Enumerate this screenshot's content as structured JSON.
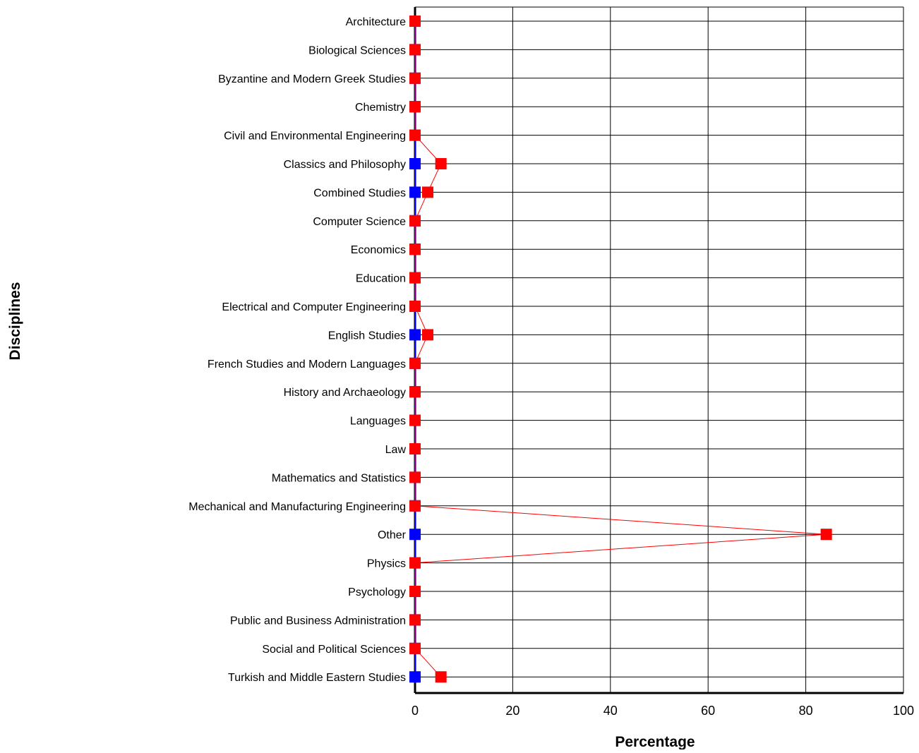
{
  "chart_data": {
    "type": "line",
    "orientation": "horizontal",
    "xlabel": "Percentage",
    "ylabel": "Disciplines",
    "xlim": [
      0,
      100
    ],
    "xticks": [
      "0",
      "20",
      "40",
      "60",
      "80",
      "100"
    ],
    "grid": true,
    "categories": [
      "Architecture",
      "Biological Sciences",
      "Byzantine and Modern Greek Studies",
      "Chemistry",
      "Civil and Environmental Engineering",
      "Classics and Philosophy",
      "Combined Studies",
      "Computer Science",
      "Economics",
      "Education",
      "Electrical and Computer Engineering",
      "English Studies",
      "French Studies and Modern Languages",
      "History and Archaeology",
      "Languages",
      "Law",
      "Mathematics and Statistics",
      "Mechanical and Manufacturing Engineering",
      "Other",
      "Physics",
      "Psychology",
      "Public and Business Administration",
      "Social and Political Sciences",
      "Turkish and Middle Eastern Studies"
    ],
    "series": [
      {
        "color": "#0000ff",
        "values": [
          0,
          0,
          0,
          0,
          0,
          0,
          0,
          0,
          0,
          0,
          0,
          0,
          0,
          0,
          0,
          0,
          0,
          0,
          0,
          0,
          0,
          0,
          0,
          0
        ]
      },
      {
        "color": "#ff0000",
        "values": [
          0,
          0,
          0,
          0,
          0,
          5.3,
          2.6,
          0,
          0,
          0,
          0,
          2.6,
          0,
          0,
          0,
          0,
          0,
          0,
          84.2,
          0,
          0,
          0,
          0,
          5.3
        ]
      }
    ]
  }
}
